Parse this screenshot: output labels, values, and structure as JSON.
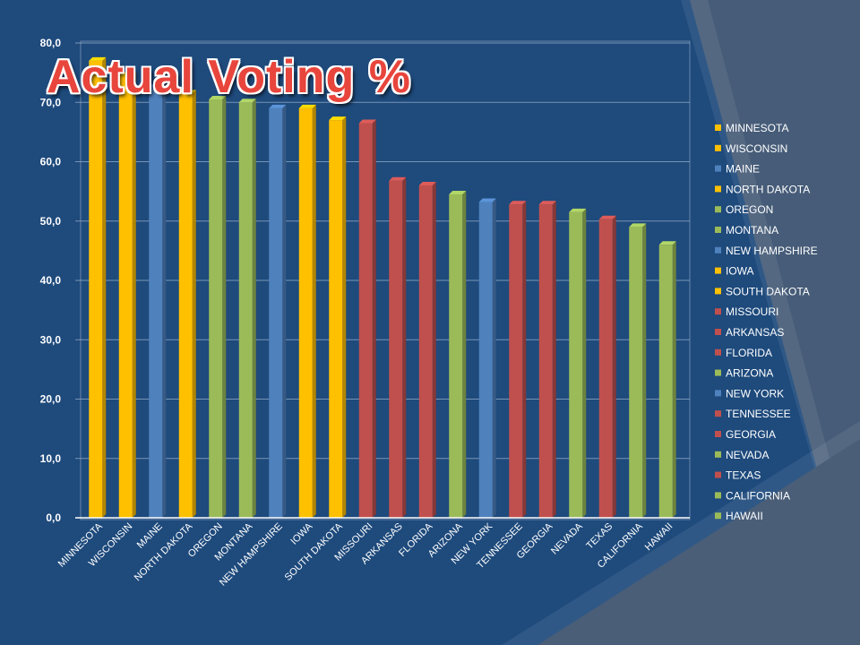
{
  "slide": {
    "title": "Actual Voting %",
    "background_color": "#1e4a7c",
    "accent_color": "#4a5e78"
  },
  "chart_data": {
    "type": "bar",
    "title": "Actual Voting %",
    "xlabel": "",
    "ylabel": "",
    "ylim": [
      0,
      80
    ],
    "yticks": [
      "0,0",
      "10,0",
      "20,0",
      "30,0",
      "40,0",
      "50,0",
      "60,0",
      "70,0",
      "80,0"
    ],
    "grid": true,
    "legend_position": "right",
    "categories": [
      "MINNESOTA",
      "WISCONSIN",
      "MAINE",
      "NORTH DAKOTA",
      "OREGON",
      "MONTANA",
      "NEW HAMPSHIRE",
      "IOWA",
      "SOUTH DAKOTA",
      "MISSOURI",
      "ARKANSAS",
      "FLORIDA",
      "ARIZONA",
      "NEW YORK",
      "TENNESSEE",
      "GEORGIA",
      "NEVADA",
      "TEXAS",
      "CALIFORNIA",
      "HAWAII"
    ],
    "values": [
      77.0,
      74.5,
      72.5,
      71.5,
      70.5,
      70.0,
      69.0,
      69.0,
      67.0,
      66.5,
      56.8,
      56.0,
      54.5,
      53.2,
      52.8,
      52.8,
      51.5,
      50.3,
      49.0,
      46.0
    ],
    "bar_colors": [
      "#ffc000",
      "#ffc000",
      "#4f81bd",
      "#ffc000",
      "#9bbb59",
      "#9bbb59",
      "#4f81bd",
      "#ffc000",
      "#ffc000",
      "#c0504d",
      "#c0504d",
      "#c0504d",
      "#9bbb59",
      "#4f81bd",
      "#c0504d",
      "#c0504d",
      "#9bbb59",
      "#c0504d",
      "#9bbb59",
      "#9bbb59"
    ]
  }
}
